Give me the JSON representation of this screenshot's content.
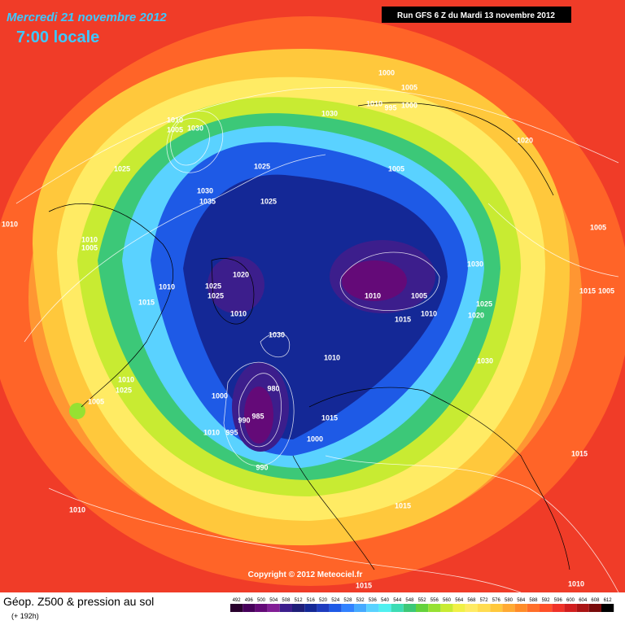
{
  "header": {
    "date": "Mercredi 21 novembre 2012",
    "time": "7:00 locale",
    "run": "Run GFS 6 Z du Mardi 13 novembre 2012",
    "copyright": "Copyright © 2012 Meteociel.fr"
  },
  "footer": {
    "title": "Géop. Z500 & pression au sol",
    "lead": "(+ 192h)"
  },
  "scale": {
    "values": [
      492,
      496,
      500,
      504,
      508,
      512,
      516,
      520,
      524,
      528,
      532,
      536,
      540,
      544,
      548,
      552,
      556,
      560,
      564,
      568,
      572,
      576,
      580,
      584,
      588,
      592,
      596,
      600,
      604,
      608,
      612
    ],
    "colors": [
      "#28002d",
      "#46005a",
      "#640a78",
      "#821e96",
      "#3c1e8c",
      "#1e1e78",
      "#142896",
      "#1e3cbe",
      "#1e5ae6",
      "#3282ff",
      "#46aaff",
      "#5ad2ff",
      "#50f0f0",
      "#3cdcb4",
      "#3cc878",
      "#64d23c",
      "#96e132",
      "#c8eb32",
      "#f0f046",
      "#ffeb64",
      "#ffdc50",
      "#ffc83c",
      "#ffaa32",
      "#ff8c28",
      "#ff6e28",
      "#ff5028",
      "#f03228",
      "#d21e1e",
      "#aa1414",
      "#780a0a",
      "#000000"
    ]
  },
  "isobar_labels": [
    1000,
    1005,
    1010,
    995,
    1000,
    1030,
    1010,
    1005,
    1030,
    1020,
    1025,
    1025,
    1005,
    1030,
    1035,
    1025,
    1010,
    1010,
    1005,
    1005,
    1030,
    1020,
    1025,
    1025,
    1010,
    1015,
    1010,
    1005,
    1015,
    1005,
    1025,
    1020,
    1010,
    1015,
    1010,
    1030,
    1010,
    1030,
    1010,
    1025,
    980,
    1000,
    1005,
    985,
    990,
    1015,
    1010,
    995,
    1000,
    990,
    1015,
    1015,
    1010,
    1010,
    1015
  ]
}
